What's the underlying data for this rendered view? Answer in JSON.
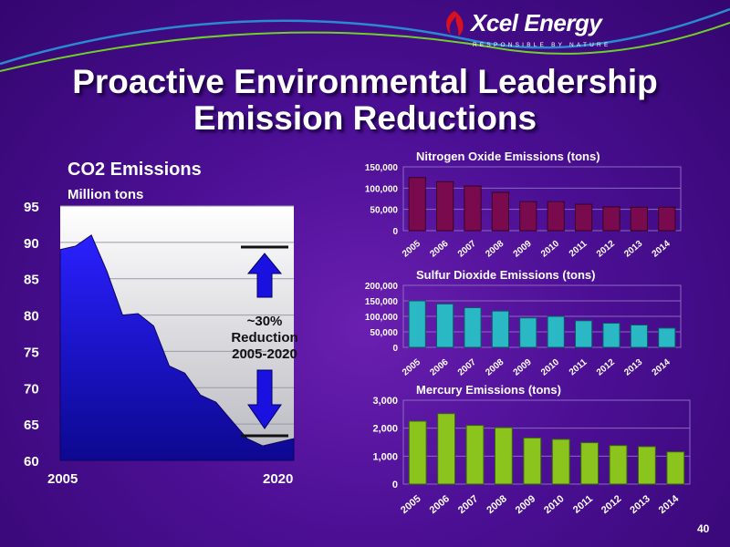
{
  "logo": {
    "name": "Xcel Energy",
    "tagline": "RESPONSIBLE BY NATURE"
  },
  "title_line1": "Proactive Environmental Leadership",
  "title_line2": "Emission Reductions",
  "page_number": "40",
  "colors": {
    "co2_fill": "#1a10d0",
    "nox_bar": "#7a0a4e",
    "so2_bar": "#2ab8c4",
    "hg_bar": "#8ac41c",
    "background": "#4b0f94"
  },
  "chart_data": [
    {
      "type": "area",
      "title": "CO2 Emissions",
      "subtitle": "Million tons",
      "x_tick_labels": [
        "2005",
        "2020"
      ],
      "x": [
        2005,
        2006,
        2007,
        2008,
        2009,
        2010,
        2011,
        2012,
        2013,
        2014,
        2015,
        2016,
        2017,
        2018,
        2019,
        2020
      ],
      "values": [
        89,
        89.5,
        91,
        86,
        80,
        80.2,
        78.5,
        73,
        72,
        69,
        68,
        65.5,
        63,
        62,
        62.5,
        63
      ],
      "ylim": [
        60,
        95
      ],
      "y_ticks": [
        60,
        65,
        70,
        75,
        80,
        85,
        90,
        95
      ],
      "grid": true,
      "annotation": [
        "~30%",
        "Reduction",
        "2005-2020"
      ]
    },
    {
      "type": "bar",
      "title": "Nitrogen Oxide Emissions (tons)",
      "categories": [
        "2005",
        "2006",
        "2007",
        "2008",
        "2009",
        "2010",
        "2011",
        "2012",
        "2013",
        "2014"
      ],
      "values": [
        125000,
        115000,
        105000,
        90000,
        68000,
        68000,
        62000,
        56000,
        55000,
        55000
      ],
      "ylim": [
        0,
        150000
      ],
      "y_tick_labels": [
        "0",
        "50,000",
        "100,000",
        "150,000"
      ],
      "grid": true
    },
    {
      "type": "bar",
      "title": "Sulfur Dioxide Emissions (tons)",
      "categories": [
        "2005",
        "2006",
        "2007",
        "2008",
        "2009",
        "2010",
        "2011",
        "2012",
        "2013",
        "2014"
      ],
      "values": [
        150000,
        140000,
        128000,
        117000,
        95000,
        100000,
        86000,
        78000,
        72000,
        62000
      ],
      "ylim": [
        0,
        200000
      ],
      "y_tick_labels": [
        "0",
        "50,000",
        "100,000",
        "150,000",
        "200,000"
      ],
      "grid": true
    },
    {
      "type": "bar",
      "title": "Mercury Emissions (tons)",
      "categories": [
        "2005",
        "2006",
        "2007",
        "2008",
        "2009",
        "2010",
        "2011",
        "2012",
        "2013",
        "2014"
      ],
      "values": [
        2250,
        2520,
        2100,
        2020,
        1650,
        1600,
        1480,
        1380,
        1340,
        1150
      ],
      "ylim": [
        0,
        3000
      ],
      "y_tick_labels": [
        "0",
        "1,000",
        "2,000",
        "3,000"
      ],
      "grid": true
    }
  ]
}
